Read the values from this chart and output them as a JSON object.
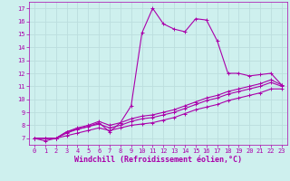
{
  "xlabel": "Windchill (Refroidissement éolien,°C)",
  "xlim": [
    -0.5,
    23.5
  ],
  "ylim": [
    6.5,
    17.5
  ],
  "xticks": [
    0,
    1,
    2,
    3,
    4,
    5,
    6,
    7,
    8,
    9,
    10,
    11,
    12,
    13,
    14,
    15,
    16,
    17,
    18,
    19,
    20,
    21,
    22,
    23
  ],
  "yticks": [
    7,
    8,
    9,
    10,
    11,
    12,
    13,
    14,
    15,
    16,
    17
  ],
  "bg_color": "#cef0ee",
  "line_color": "#aa00aa",
  "grid_color": "#bbdede",
  "lines": [
    [
      7.0,
      6.8,
      7.0,
      7.5,
      7.7,
      7.9,
      8.2,
      7.5,
      8.2,
      9.5,
      15.1,
      17.0,
      15.8,
      15.4,
      15.2,
      16.2,
      16.1,
      14.5,
      12.0,
      12.0,
      11.8,
      11.9,
      12.0,
      11.1
    ],
    [
      7.0,
      7.0,
      7.0,
      7.5,
      7.8,
      8.0,
      8.3,
      8.0,
      8.2,
      8.5,
      8.7,
      8.8,
      9.0,
      9.2,
      9.5,
      9.8,
      10.1,
      10.3,
      10.6,
      10.8,
      11.0,
      11.2,
      11.5,
      11.1
    ],
    [
      7.0,
      7.0,
      7.0,
      7.4,
      7.7,
      7.9,
      8.1,
      7.8,
      8.0,
      8.3,
      8.5,
      8.6,
      8.8,
      9.0,
      9.3,
      9.6,
      9.9,
      10.1,
      10.4,
      10.6,
      10.8,
      11.0,
      11.3,
      11.0
    ],
    [
      7.0,
      7.0,
      7.0,
      7.2,
      7.4,
      7.6,
      7.8,
      7.6,
      7.8,
      8.0,
      8.1,
      8.2,
      8.4,
      8.6,
      8.9,
      9.2,
      9.4,
      9.6,
      9.9,
      10.1,
      10.3,
      10.5,
      10.8,
      10.8
    ]
  ],
  "marker": "+",
  "markersize": 3.5,
  "linewidth": 0.8,
  "tick_fontsize": 5.0,
  "xlabel_fontsize": 6.0,
  "font_family": "monospace"
}
